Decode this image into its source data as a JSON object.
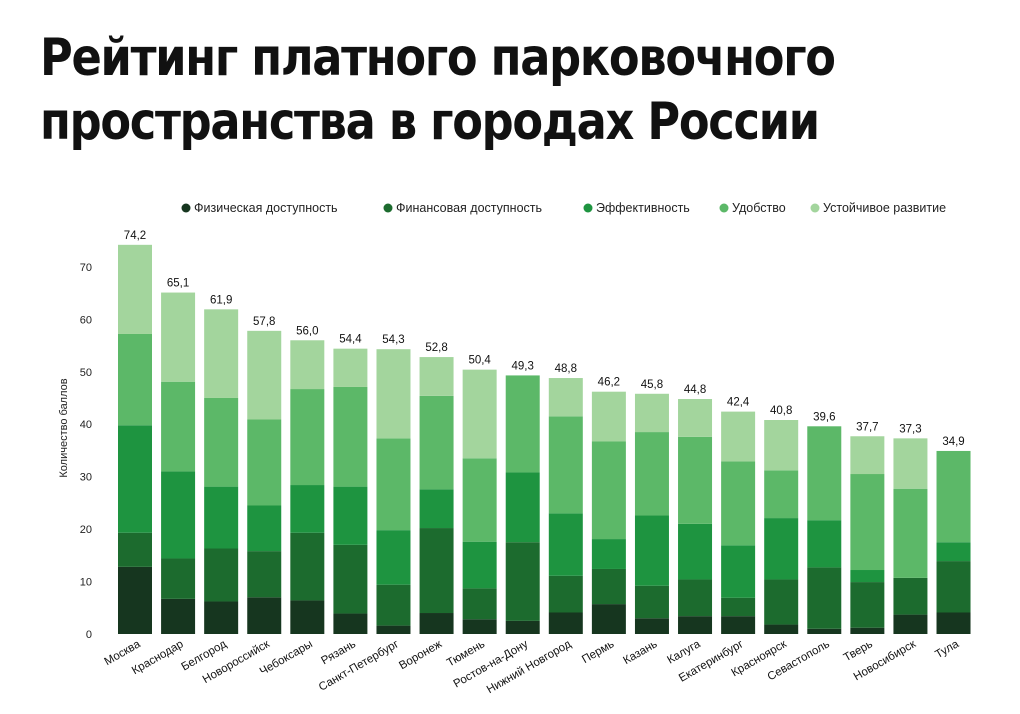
{
  "title": "Рейтинг платного парковочного пространства в городах России",
  "chart_data": {
    "type": "bar",
    "stacked": true,
    "title": "Рейтинг платного парковочного пространства в городах России",
    "ylabel": "Количество баллов",
    "xlabel": "",
    "ylim": [
      0,
      75
    ],
    "yticks": [
      0,
      10,
      20,
      30,
      40,
      50,
      60,
      70
    ],
    "grid": false,
    "legend_position": "top",
    "categories": [
      "Москва",
      "Краснодар",
      "Белгород",
      "Новороссийск",
      "Чебоксары",
      "Рязань",
      "Санкт-Петербург",
      "Воронеж",
      "Тюмень",
      "Ростов-на-Дону",
      "Нижний Новгород",
      "Пермь",
      "Казань",
      "Калуга",
      "Екатеринбург",
      "Красноярск",
      "Севастополь",
      "Тверь",
      "Новосибирск",
      "Тула"
    ],
    "totals": [
      "74,2",
      "65,1",
      "61,9",
      "57,8",
      "56,0",
      "54,4",
      "54,3",
      "52,8",
      "50,4",
      "49,3",
      "48,8",
      "46,2",
      "45,8",
      "44,8",
      "42,4",
      "40,8",
      "39,6",
      "37,7",
      "37,3",
      "34,9"
    ],
    "series": [
      {
        "name": "Физическая доступность",
        "color": "#16361f",
        "values": [
          12.8,
          6.7,
          6.2,
          7.0,
          6.4,
          3.9,
          1.6,
          4.0,
          2.8,
          2.5,
          4.1,
          5.7,
          3.0,
          3.4,
          3.4,
          1.8,
          1.0,
          1.2,
          3.7,
          4.1
        ]
      },
      {
        "name": "Финансовая доступность",
        "color": "#1c6b2e",
        "values": [
          6.5,
          7.7,
          10.1,
          8.8,
          12.9,
          13.1,
          7.8,
          16.2,
          5.9,
          15.0,
          7.0,
          6.7,
          6.2,
          7.0,
          3.5,
          8.6,
          11.7,
          8.7,
          7.0,
          9.8
        ]
      },
      {
        "name": "Эффективность",
        "color": "#1e9440",
        "values": [
          20.5,
          16.6,
          11.8,
          8.7,
          9.1,
          11.1,
          10.4,
          7.4,
          8.9,
          13.3,
          11.9,
          5.7,
          13.4,
          10.6,
          10.0,
          11.7,
          9.0,
          2.3,
          0.0,
          3.6
        ]
      },
      {
        "name": "Удобство",
        "color": "#5cb868",
        "values": [
          17.4,
          17.1,
          16.9,
          16.4,
          18.3,
          19.0,
          17.5,
          17.8,
          15.9,
          18.5,
          18.5,
          18.6,
          15.9,
          16.6,
          16.0,
          9.1,
          17.9,
          18.3,
          17.0,
          17.4
        ]
      },
      {
        "name": "Устойчивое развитие",
        "color": "#a3d59d",
        "values": [
          17.0,
          17.0,
          16.9,
          16.9,
          9.3,
          7.3,
          17.0,
          7.4,
          16.9,
          0.0,
          7.3,
          9.5,
          7.3,
          7.2,
          9.5,
          9.6,
          0.0,
          7.2,
          9.6,
          0.0
        ]
      }
    ]
  }
}
